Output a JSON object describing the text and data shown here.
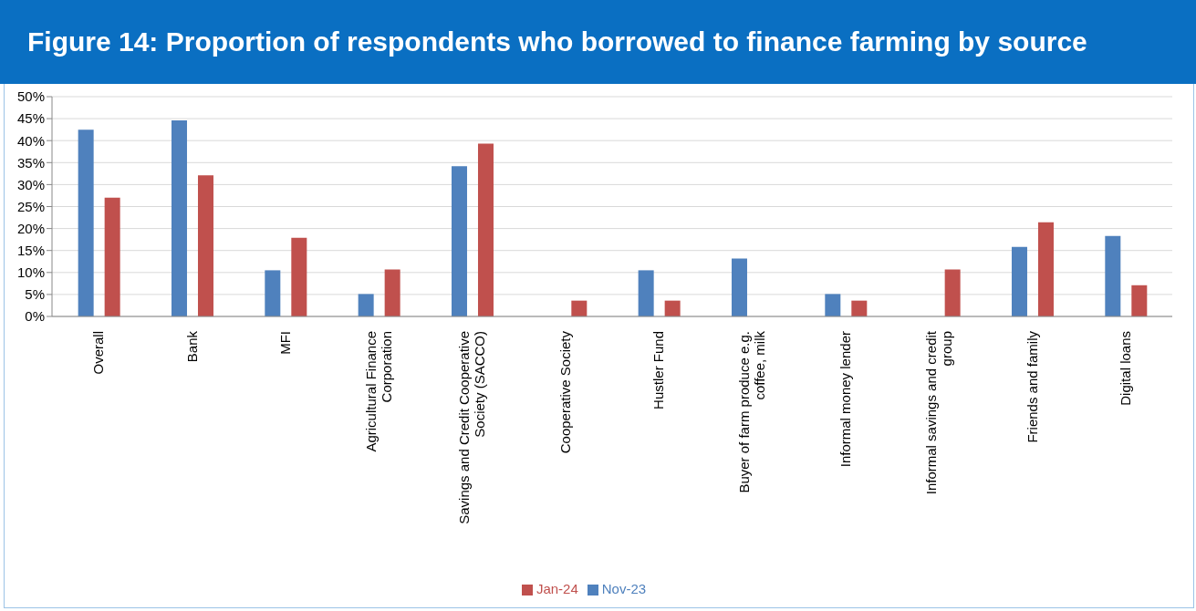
{
  "chart_data": {
    "type": "bar",
    "title": "Figure 14: Proportion of respondents who borrowed to finance farming by source",
    "categories": [
      "Overall",
      "Bank",
      "MFI",
      "Agricultural Finance Corporation",
      "Savings and Credit Cooperative Society (SACCO)",
      "Cooperative Society",
      "Hustler Fund",
      "Buyer of farm produce e.g. coffee, milk",
      "Informal money lender",
      "Informal savings and credit group",
      "Friends and family",
      "Digital loans"
    ],
    "series": [
      {
        "name": "Nov-23",
        "color": "#4f81bd",
        "values": [
          42.5,
          44.6,
          10.5,
          5.1,
          34.2,
          null,
          10.5,
          13.2,
          5.1,
          null,
          15.8,
          18.3
        ]
      },
      {
        "name": "Jan-24",
        "color": "#c0504d",
        "values": [
          27,
          32.1,
          17.9,
          10.7,
          39.3,
          3.6,
          3.6,
          null,
          3.6,
          10.7,
          21.4,
          7.1
        ]
      }
    ],
    "ylim": [
      0,
      50
    ],
    "yticks": [
      {
        "value": 0,
        "label": "0%"
      },
      {
        "value": 5,
        "label": "5%"
      },
      {
        "value": 10,
        "label": "10%"
      },
      {
        "value": 15,
        "label": "15%"
      },
      {
        "value": 20,
        "label": "20%"
      },
      {
        "value": 25,
        "label": "25%"
      },
      {
        "value": 30,
        "label": "30%"
      },
      {
        "value": 35,
        "label": "35%"
      },
      {
        "value": 40,
        "label": "40%"
      },
      {
        "value": 45,
        "label": "45%"
      },
      {
        "value": 50,
        "label": "50%"
      }
    ],
    "grid": "y",
    "legend": "bottom"
  }
}
